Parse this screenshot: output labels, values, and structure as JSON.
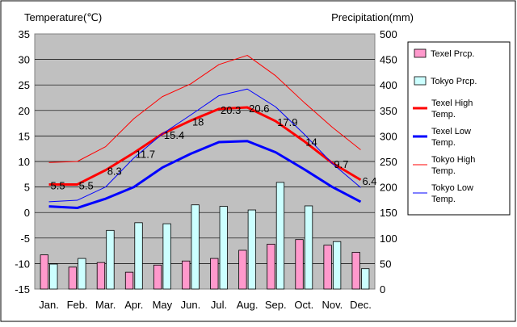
{
  "chart_data": {
    "type": "bar+line",
    "categories": [
      "Jan.",
      "Feb.",
      "Mar.",
      "Apr.",
      "May",
      "Jun.",
      "Jul.",
      "Aug.",
      "Sep.",
      "Oct.",
      "Nov.",
      "Dec."
    ],
    "left_axis": {
      "label": "Temperature(℃)",
      "min": -15,
      "max": 35,
      "step": 5
    },
    "right_axis": {
      "label": "Precipitation(mm)",
      "min": 0,
      "max": 500,
      "step": 50
    },
    "bar_series": [
      {
        "name": "Texel Prcp.",
        "color": "#ff99cc",
        "values": [
          67,
          43,
          52,
          33,
          47,
          55,
          60,
          76,
          88,
          97,
          86,
          72
        ]
      },
      {
        "name": "Tokyo Prcp.",
        "color": "#ccffff",
        "values": [
          49,
          60,
          115,
          130,
          128,
          165,
          162,
          155,
          209,
          163,
          93,
          40
        ]
      }
    ],
    "line_series": [
      {
        "name": "Texel High Temp.",
        "color": "#ff0000",
        "style": "thick",
        "values": [
          5.5,
          5.5,
          8.3,
          11.7,
          15.4,
          18,
          20.3,
          20.6,
          17.9,
          14,
          9.7,
          6.4
        ]
      },
      {
        "name": "Texel Low Temp.",
        "color": "#0000ff",
        "style": "thick",
        "values": [
          1.2,
          0.9,
          2.7,
          5,
          8.8,
          11.5,
          13.8,
          14,
          11.8,
          8.5,
          5,
          2.1
        ]
      },
      {
        "name": "Tokyo High Temp.",
        "color": "#ff0000",
        "style": "thin",
        "values": [
          9.8,
          10,
          12.9,
          18.4,
          22.7,
          25.2,
          29,
          30.8,
          26.8,
          21.6,
          16.7,
          12.3
        ]
      },
      {
        "name": "Tokyo Low Temp.",
        "color": "#0000ff",
        "style": "thin",
        "values": [
          2.1,
          2.4,
          5,
          10.7,
          15.4,
          19.1,
          22.9,
          24.2,
          20.7,
          15.4,
          9.6,
          4.9
        ]
      }
    ],
    "data_labels": {
      "series": "Texel High Temp.",
      "labels": [
        "5.5",
        "5.5",
        "8.3",
        "11.7",
        "15.4",
        "18",
        "20.3",
        "20.6",
        "17.9",
        "14",
        "9.7",
        "6.4"
      ]
    },
    "grid": true,
    "legend": "right",
    "plot_background": "#c0c0c0"
  }
}
